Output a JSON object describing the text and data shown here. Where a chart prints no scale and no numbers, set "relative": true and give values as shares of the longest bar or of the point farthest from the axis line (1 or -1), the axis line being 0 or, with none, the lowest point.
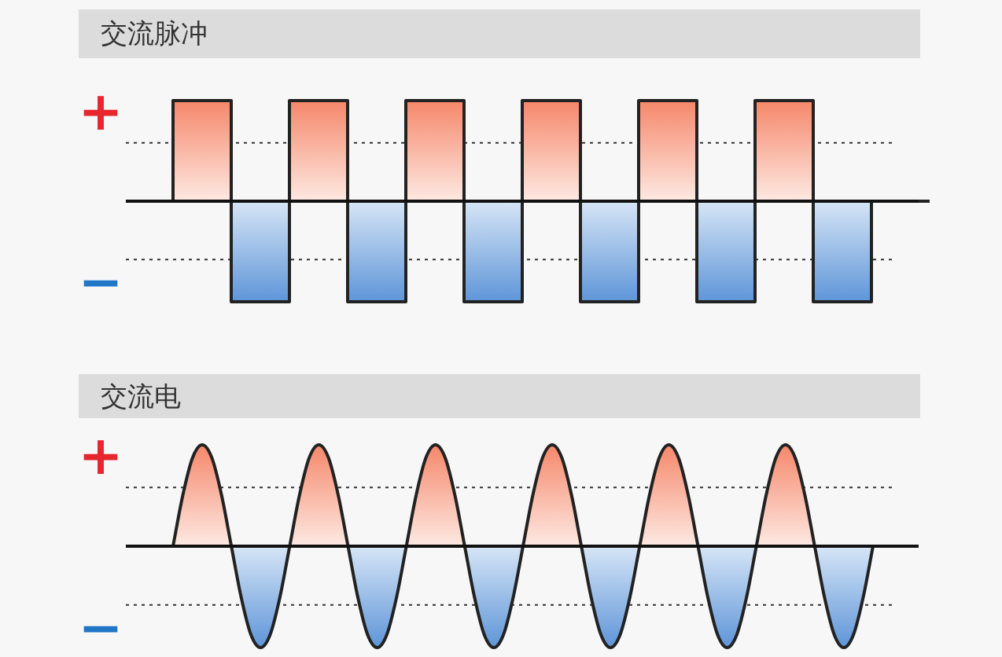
{
  "chart_data": [
    {
      "type": "step",
      "title": "交流脉冲",
      "relative": true,
      "categories": [
        null,
        null,
        null,
        null,
        null,
        null,
        null,
        null,
        null,
        null,
        null,
        null,
        null,
        null
      ],
      "series": [
        {
          "color": "#222222",
          "values": [
            0,
            1,
            -1,
            1,
            -1,
            1,
            -1,
            1,
            -1,
            1,
            -1,
            1,
            -1,
            0
          ]
        }
      ],
      "ref_lines": [
        {
          "axis": "y",
          "value": 0.58,
          "line_style": "dotted"
        },
        {
          "axis": "y",
          "value": -0.58,
          "line_style": "dotted"
        }
      ],
      "annotations": [
        "+",
        "−"
      ]
    },
    {
      "type": "area",
      "title": "交流电",
      "relative": true,
      "categories": [
        null,
        null,
        null,
        null,
        null,
        null,
        null,
        null,
        null,
        null,
        null,
        null,
        null,
        null,
        null,
        null,
        null,
        null,
        null,
        null,
        null,
        null,
        null,
        null,
        null,
        null,
        null,
        null,
        null,
        null,
        null,
        null,
        null,
        null,
        null,
        null,
        null,
        null,
        null,
        null,
        null,
        null,
        null,
        null,
        null,
        null,
        null,
        null,
        null,
        null,
        null,
        null,
        null,
        null,
        null,
        null,
        null,
        null,
        null,
        null,
        null,
        null,
        null,
        null,
        null,
        null,
        null,
        null,
        null,
        null,
        null,
        null,
        null
      ],
      "series": [
        {
          "color": "#222222",
          "values": [
            0,
            0.5,
            0.87,
            1,
            0.87,
            0.5,
            0,
            -0.5,
            -0.87,
            -1,
            -0.87,
            -0.5,
            0,
            0.5,
            0.87,
            1,
            0.87,
            0.5,
            0,
            -0.5,
            -0.87,
            -1,
            -0.87,
            -0.5,
            0,
            0.5,
            0.87,
            1,
            0.87,
            0.5,
            0,
            -0.5,
            -0.87,
            -1,
            -0.87,
            -0.5,
            0,
            0.5,
            0.87,
            1,
            0.87,
            0.5,
            0,
            -0.5,
            -0.87,
            -1,
            -0.87,
            -0.5,
            0,
            0.5,
            0.87,
            1,
            0.87,
            0.5,
            0,
            -0.5,
            -0.87,
            -1,
            -0.87,
            -0.5,
            0,
            0.5,
            0.87,
            1,
            0.87,
            0.5,
            0,
            -0.5,
            -0.87,
            -1,
            -0.87,
            -0.5,
            0
          ]
        }
      ],
      "ref_lines": [
        {
          "axis": "y",
          "value": 0.58,
          "line_style": "dotted"
        },
        {
          "axis": "y",
          "value": -0.58,
          "line_style": "dotted"
        }
      ],
      "annotations": [
        "+",
        "−"
      ]
    }
  ]
}
